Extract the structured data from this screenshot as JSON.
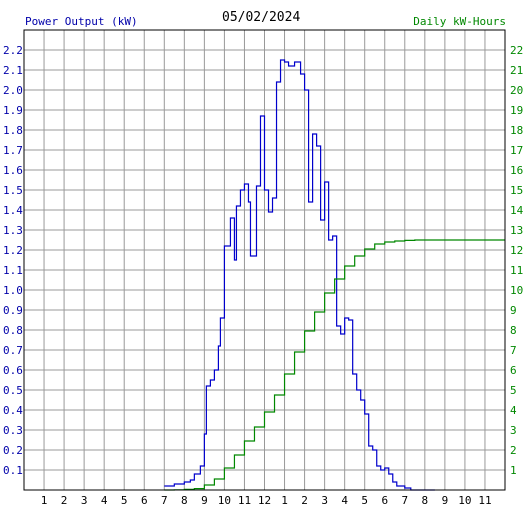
{
  "header": {
    "left_title": "Power Output (kW)",
    "date": "05/02/2024",
    "right_title": "Daily kW-Hours"
  },
  "colors": {
    "power": "#0000cc",
    "energy": "#008800",
    "grid": "#999999",
    "frame": "#000000"
  },
  "chart_data": {
    "type": "line",
    "title": "05/02/2024",
    "ylabel_left": "Power Output (kW)",
    "ylabel_right": "Daily kW-Hours",
    "xlabel": "",
    "x_tick_labels": [
      "1",
      "2",
      "3",
      "4",
      "5",
      "6",
      "7",
      "8",
      "9",
      "10",
      "11",
      "12",
      "1",
      "2",
      "3",
      "4",
      "5",
      "6",
      "7",
      "8",
      "9",
      "10",
      "11"
    ],
    "y_left_ticks": [
      "0.1",
      "0.2",
      "0.3",
      "0.4",
      "0.5",
      "0.6",
      "0.7",
      "0.8",
      "0.9",
      "1.0",
      "1.1",
      "1.2",
      "1.3",
      "1.4",
      "1.5",
      "1.6",
      "1.7",
      "1.8",
      "1.9",
      "2.0",
      "2.1",
      "2.2"
    ],
    "y_right_ticks": [
      "1",
      "2",
      "3",
      "4",
      "5",
      "6",
      "7",
      "8",
      "9",
      "10",
      "11",
      "12",
      "13",
      "14",
      "15",
      "16",
      "17",
      "18",
      "19",
      "20",
      "21",
      "22"
    ],
    "xlim": [
      0,
      24
    ],
    "ylim_left": [
      0,
      2.3
    ],
    "ylim_right": [
      0,
      23
    ],
    "grid": true,
    "series": [
      {
        "name": "Power Output (kW)",
        "axis": "left",
        "step": true,
        "x": [
          7.0,
          7.5,
          8.0,
          8.3,
          8.5,
          8.8,
          9.0,
          9.1,
          9.3,
          9.5,
          9.7,
          9.8,
          10.0,
          10.3,
          10.5,
          10.6,
          10.8,
          11.0,
          11.2,
          11.3,
          11.6,
          11.8,
          12.0,
          12.2,
          12.4,
          12.6,
          12.8,
          13.0,
          13.2,
          13.5,
          13.8,
          14.0,
          14.2,
          14.4,
          14.6,
          14.8,
          15.0,
          15.2,
          15.4,
          15.6,
          15.8,
          16.0,
          16.2,
          16.4,
          16.6,
          16.8,
          17.0,
          17.2,
          17.4,
          17.6,
          17.8,
          18.0,
          18.2,
          18.4,
          18.6,
          19.0,
          19.3,
          19.6,
          20.0,
          20.5
        ],
        "values": [
          0.02,
          0.03,
          0.04,
          0.05,
          0.08,
          0.12,
          0.28,
          0.52,
          0.55,
          0.6,
          0.72,
          0.86,
          1.22,
          1.36,
          1.15,
          1.42,
          1.5,
          1.53,
          1.44,
          1.17,
          1.52,
          1.87,
          1.5,
          1.39,
          1.46,
          2.04,
          2.15,
          2.14,
          2.12,
          2.14,
          2.08,
          2.0,
          1.44,
          1.78,
          1.72,
          1.35,
          1.54,
          1.25,
          1.27,
          0.82,
          0.78,
          0.86,
          0.85,
          0.58,
          0.5,
          0.45,
          0.38,
          0.22,
          0.2,
          0.12,
          0.1,
          0.11,
          0.08,
          0.04,
          0.02,
          0.01,
          0.0,
          0.0,
          0.0,
          0.0
        ]
      },
      {
        "name": "Daily kW-Hours",
        "axis": "right",
        "step": true,
        "x": [
          7.0,
          7.5,
          8.0,
          8.5,
          9.0,
          9.5,
          10.0,
          10.5,
          11.0,
          11.5,
          12.0,
          12.5,
          13.0,
          13.5,
          14.0,
          14.5,
          15.0,
          15.5,
          16.0,
          16.5,
          17.0,
          17.5,
          18.0,
          18.5,
          19.0,
          19.5,
          20.0,
          21.0,
          22.0,
          23.0,
          24.0
        ],
        "values": [
          0.0,
          0.01,
          0.03,
          0.07,
          0.25,
          0.55,
          1.1,
          1.75,
          2.45,
          3.15,
          3.9,
          4.75,
          5.8,
          6.9,
          7.95,
          8.9,
          9.85,
          10.55,
          11.2,
          11.7,
          12.05,
          12.3,
          12.4,
          12.45,
          12.48,
          12.5,
          12.5,
          12.5,
          12.5,
          12.5,
          12.5
        ]
      }
    ]
  }
}
